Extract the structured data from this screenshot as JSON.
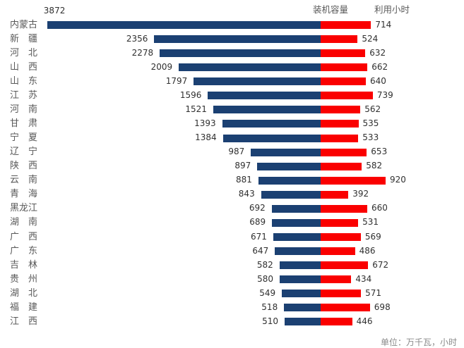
{
  "legend": {
    "capacity": "装机容量",
    "hours": "利用小时"
  },
  "footer": {
    "unit_note": "单位：万千瓦，小时"
  },
  "chart_data": {
    "type": "bar",
    "subtype": "tornado-bidirectional",
    "orientation": "horizontal",
    "legend_position": "top",
    "grid": false,
    "axes_hidden": true,
    "value_labels": "outside-end",
    "categories": [
      "内蒙古",
      "新　疆",
      "河　北",
      "山　西",
      "山　东",
      "江　苏",
      "河　南",
      "甘　肃",
      "宁　夏",
      "辽　宁",
      "陕　西",
      "云　南",
      "青　海",
      "黑龙江",
      "湖　南",
      "广　西",
      "广　东",
      "吉　林",
      "贵　州",
      "湖　北",
      "福　建",
      "江　西"
    ],
    "series": [
      {
        "name": "装机容量",
        "color": "#1B4072",
        "direction": "left",
        "values": [
          3872,
          2356,
          2278,
          2009,
          1797,
          1596,
          1521,
          1393,
          1384,
          987,
          897,
          881,
          843,
          692,
          689,
          671,
          647,
          582,
          580,
          549,
          518,
          510
        ]
      },
      {
        "name": "利用小时",
        "color": "#FA0000",
        "direction": "right",
        "values": [
          714,
          524,
          632,
          662,
          640,
          739,
          562,
          535,
          533,
          653,
          582,
          920,
          392,
          660,
          531,
          569,
          486,
          672,
          434,
          571,
          698,
          446
        ]
      }
    ],
    "xlim_capacity": [
      0,
      4000
    ],
    "xlim_hours": [
      0,
      2000
    ],
    "unit_note": "单位：万千瓦，小时"
  }
}
